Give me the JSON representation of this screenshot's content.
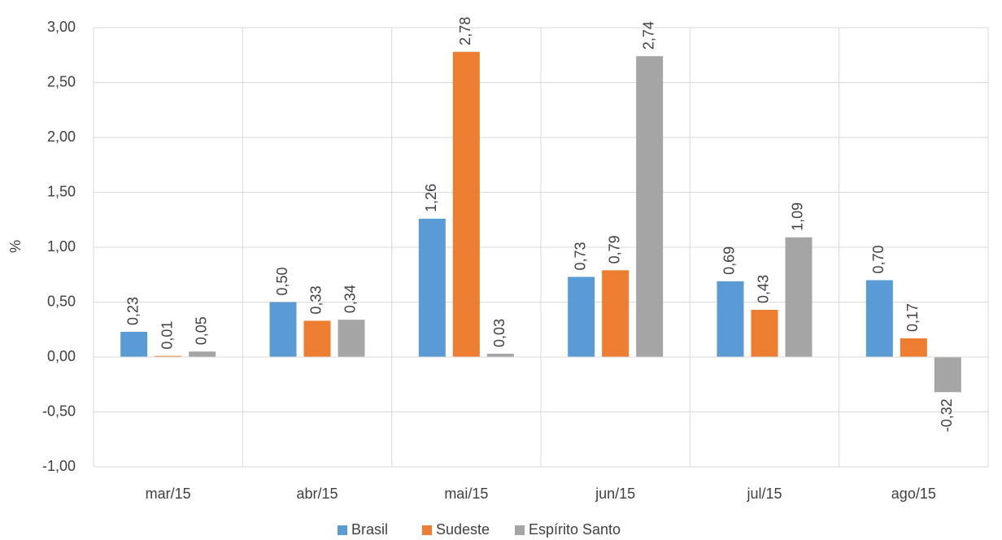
{
  "chart_data": {
    "type": "bar",
    "y_label": "%",
    "categories": [
      "mar/15",
      "abr/15",
      "mai/15",
      "jun/15",
      "jul/15",
      "ago/15"
    ],
    "series": [
      {
        "name": "Brasil",
        "color": "#5b9bd5",
        "values": [
          0.23,
          0.5,
          1.26,
          0.73,
          0.69,
          0.7
        ],
        "value_labels": [
          "0,23",
          "0,50",
          "1,26",
          "0,73",
          "0,69",
          "0,70"
        ]
      },
      {
        "name": "Sudeste",
        "color": "#ed7d31",
        "values": [
          0.01,
          0.33,
          2.78,
          0.79,
          0.43,
          0.17
        ],
        "value_labels": [
          "0,01",
          "0,33",
          "2,78",
          "0,79",
          "0,43",
          "0,17"
        ]
      },
      {
        "name": "Espírito Santo",
        "color": "#a5a5a5",
        "values": [
          0.05,
          0.34,
          0.03,
          2.74,
          1.09,
          -0.32
        ],
        "value_labels": [
          "0,05",
          "0,34",
          "0,03",
          "2,74",
          "1,09",
          "-0,32"
        ]
      }
    ],
    "ylim": [
      -1,
      3
    ],
    "yticks": [
      {
        "value": -1,
        "label": "-1,00"
      },
      {
        "value": -0.5,
        "label": "-0,50"
      },
      {
        "value": 0,
        "label": "0,00"
      },
      {
        "value": 0.5,
        "label": "0,50"
      },
      {
        "value": 1,
        "label": "1,00"
      },
      {
        "value": 1.5,
        "label": "1,50"
      },
      {
        "value": 2,
        "label": "2,00"
      },
      {
        "value": 2.5,
        "label": "2,50"
      },
      {
        "value": 3,
        "label": "3,00"
      }
    ],
    "grid": true,
    "legend": "bottom"
  }
}
